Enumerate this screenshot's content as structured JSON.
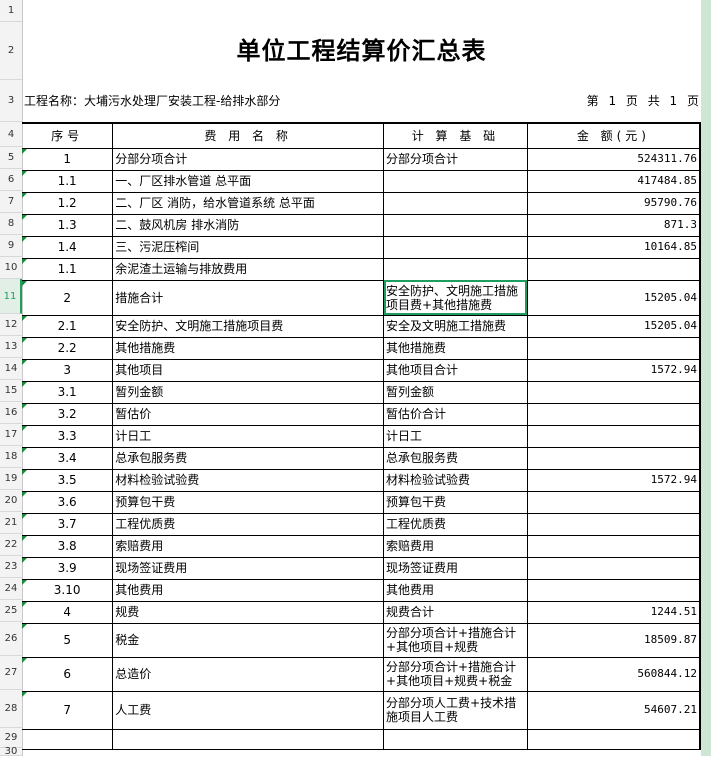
{
  "title": "单位工程结算价汇总表",
  "project_name": "工程名称：大埔污水处理厂安装工程-给排水部分",
  "page_info": "第 1 页 共 1 页",
  "headers": [
    "序号",
    "费 用 名 称",
    "计 算 基 础",
    "金 额(元)"
  ],
  "rows": [
    {
      "no": "1",
      "name": "分部分项合计",
      "basis": "分部分项合计",
      "amount": "524311.76"
    },
    {
      "no": "1.1",
      "name": "一、厂区排水管道 总平面",
      "basis": "",
      "amount": "417484.85"
    },
    {
      "no": "1.2",
      "name": "二、厂区  消防，给水管道系统  总平面",
      "basis": "",
      "amount": "95790.76"
    },
    {
      "no": "1.3",
      "name": "二、鼓风机房 排水消防",
      "basis": "",
      "amount": "871.3"
    },
    {
      "no": "1.4",
      "name": "三、污泥压榨间",
      "basis": "",
      "amount": "10164.85"
    },
    {
      "no": "1.1",
      "name": "余泥渣土运输与排放费用",
      "basis": "",
      "amount": ""
    },
    {
      "no": "2",
      "name": "措施合计",
      "basis": "安全防护、文明施工措施项目费+其他措施费",
      "amount": "15205.04"
    },
    {
      "no": "2.1",
      "name": "安全防护、文明施工措施项目费",
      "basis": "安全及文明施工措施费",
      "amount": "15205.04"
    },
    {
      "no": "2.2",
      "name": "其他措施费",
      "basis": "其他措施费",
      "amount": ""
    },
    {
      "no": "3",
      "name": "其他项目",
      "basis": "其他项目合计",
      "amount": "1572.94"
    },
    {
      "no": "3.1",
      "name": "暂列金额",
      "basis": "暂列金额",
      "amount": ""
    },
    {
      "no": "3.2",
      "name": "暂估价",
      "basis": "暂估价合计",
      "amount": ""
    },
    {
      "no": "3.3",
      "name": "计日工",
      "basis": "计日工",
      "amount": ""
    },
    {
      "no": "3.4",
      "name": "总承包服务费",
      "basis": "总承包服务费",
      "amount": ""
    },
    {
      "no": "3.5",
      "name": "材料检验试验费",
      "basis": "材料检验试验费",
      "amount": "1572.94"
    },
    {
      "no": "3.6",
      "name": "预算包干费",
      "basis": "预算包干费",
      "amount": ""
    },
    {
      "no": "3.7",
      "name": "工程优质费",
      "basis": "工程优质费",
      "amount": ""
    },
    {
      "no": "3.8",
      "name": "索赔费用",
      "basis": "索赔费用",
      "amount": ""
    },
    {
      "no": "3.9",
      "name": "现场签证费用",
      "basis": "现场签证费用",
      "amount": ""
    },
    {
      "no": "3.10",
      "name": "其他费用",
      "basis": "其他费用",
      "amount": ""
    },
    {
      "no": "4",
      "name": "规费",
      "basis": "规费合计",
      "amount": "1244.51"
    },
    {
      "no": "5",
      "name": "税金",
      "basis": "分部分项合计+措施合计+其他项目+规费",
      "amount": "18509.87"
    },
    {
      "no": "6",
      "name": "总造价",
      "basis": "分部分项合计+措施合计+其他项目+规费+税金",
      "amount": "560844.12"
    },
    {
      "no": "7",
      "name": "人工费",
      "basis": "分部分项人工费+技术措施项目人工费",
      "amount": "54607.21"
    },
    {
      "no": "",
      "name": "",
      "basis": "",
      "amount": ""
    }
  ],
  "row_numbers": [
    "1",
    "2",
    "3",
    "4",
    "5",
    "6",
    "7",
    "8",
    "9",
    "10",
    "11",
    "12",
    "13",
    "14",
    "15",
    "16",
    "17",
    "18",
    "19",
    "20",
    "21",
    "22",
    "23",
    "24",
    "25",
    "26",
    "27",
    "28",
    "29",
    "30"
  ],
  "selected_row": "11",
  "colors": {
    "selection": "#1e9e5e",
    "comment_marker": "#1a8a3a"
  }
}
